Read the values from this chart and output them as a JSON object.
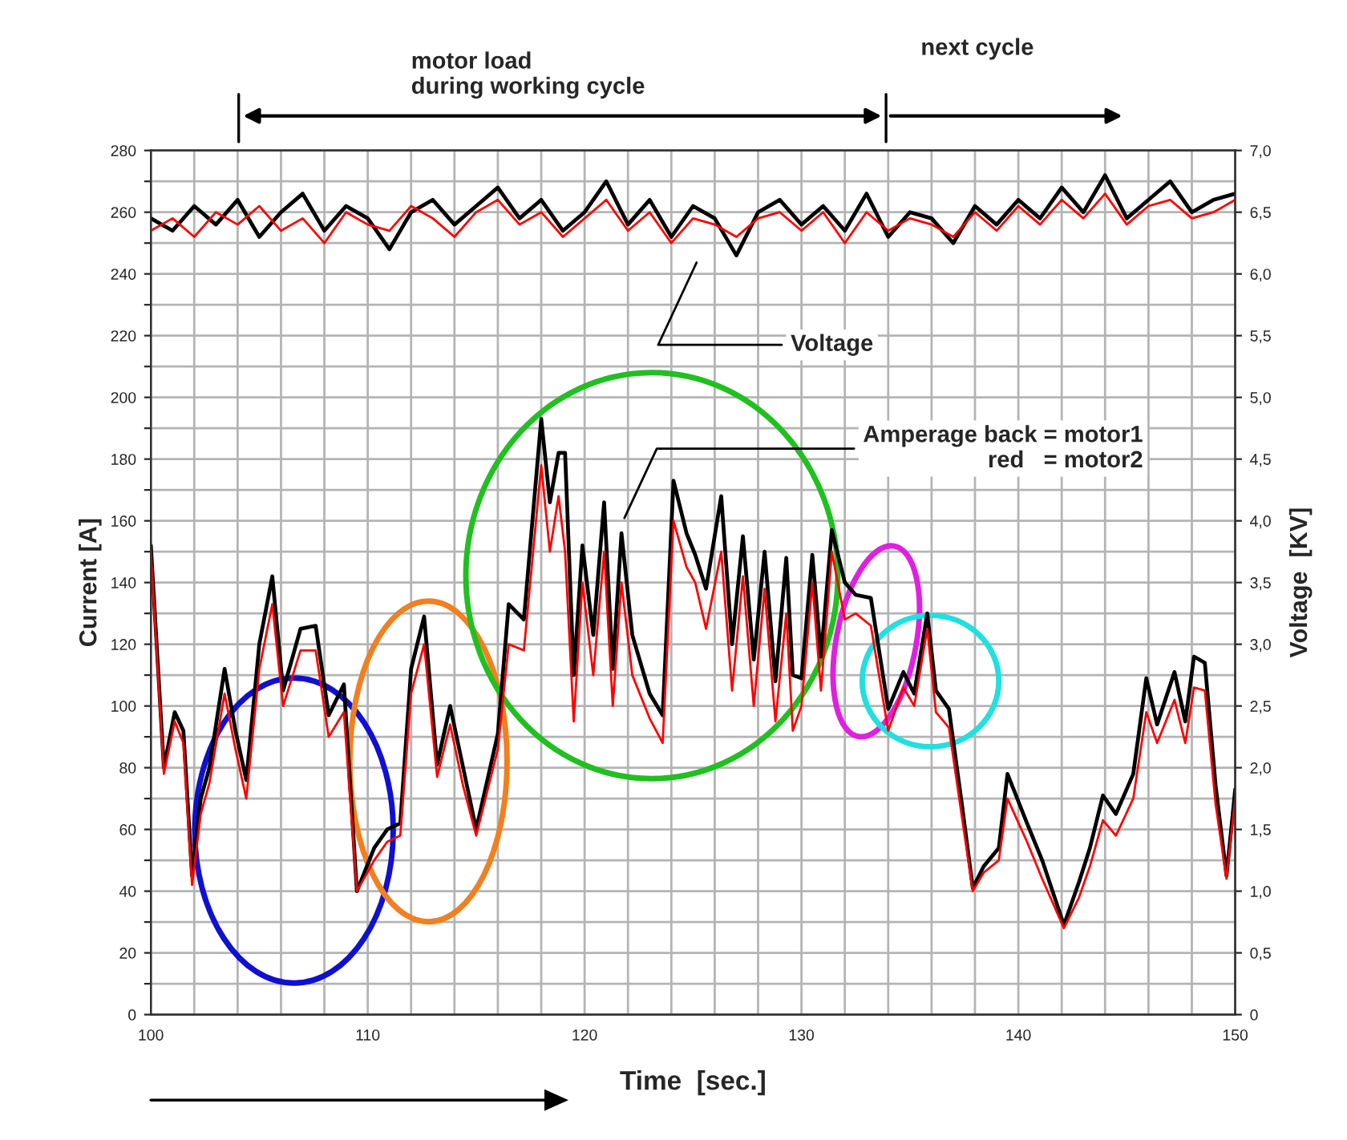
{
  "chart_data": {
    "type": "line",
    "xlabel": "Time  [sec.]",
    "ylabel": "Current [A]",
    "y2label": "Voltage  [KV]",
    "xlim": [
      100,
      150
    ],
    "xticks": [
      100,
      {
        "value": 102,
        "label": null
      },
      {
        "value": 104,
        "label": null
      },
      {
        "value": 106,
        "label": null
      },
      {
        "value": 108,
        "label": null
      },
      110,
      {
        "value": 112,
        "label": null
      },
      {
        "value": 114,
        "label": null
      },
      {
        "value": 116,
        "label": null
      },
      {
        "value": 118,
        "label": null
      },
      120,
      {
        "value": 122,
        "label": null
      },
      {
        "value": 124,
        "label": null
      },
      {
        "value": 126,
        "label": null
      },
      {
        "value": 128,
        "label": null
      },
      130,
      {
        "value": 132,
        "label": null
      },
      {
        "value": 134,
        "label": null
      },
      {
        "value": 136,
        "label": null
      },
      {
        "value": 138,
        "label": null
      },
      140,
      {
        "value": 142,
        "label": null
      },
      {
        "value": 144,
        "label": null
      },
      {
        "value": 146,
        "label": null
      },
      {
        "value": 148,
        "label": null
      },
      150
    ],
    "ylim": [
      0,
      280
    ],
    "yticks": [
      0,
      {
        "value": 10,
        "label": null
      },
      20,
      {
        "value": 30,
        "label": null
      },
      40,
      {
        "value": 50,
        "label": null
      },
      60,
      {
        "value": 70,
        "label": null
      },
      80,
      {
        "value": 90,
        "label": null
      },
      100,
      {
        "value": 110,
        "label": null
      },
      120,
      {
        "value": 130,
        "label": null
      },
      140,
      {
        "value": 150,
        "label": null
      },
      160,
      {
        "value": 170,
        "label": null
      },
      180,
      {
        "value": 190,
        "label": null
      },
      200,
      {
        "value": 210,
        "label": null
      },
      220,
      {
        "value": 230,
        "label": null
      },
      240,
      {
        "value": 250,
        "label": null
      },
      260,
      {
        "value": 270,
        "label": null
      },
      280
    ],
    "y2lim": [
      0,
      7
    ],
    "y2ticks": [
      0,
      {
        "value": 0.5,
        "label": "0,5"
      },
      {
        "value": 1,
        "label": "1,0"
      },
      {
        "value": 1.5,
        "label": "1,5"
      },
      {
        "value": 2,
        "label": "2,0"
      },
      {
        "value": 2.5,
        "label": "2,5"
      },
      {
        "value": 3,
        "label": "3,0"
      },
      {
        "value": 3.5,
        "label": "3,5"
      },
      {
        "value": 4,
        "label": "4,0"
      },
      {
        "value": 4.5,
        "label": "4,5"
      },
      {
        "value": 5,
        "label": "5,0"
      },
      {
        "value": 5.5,
        "label": "5,5"
      },
      {
        "value": 6,
        "label": "6,0"
      },
      {
        "value": 6.5,
        "label": "6,5"
      },
      {
        "value": 7,
        "label": "7,0"
      }
    ],
    "grid": true,
    "series": [
      {
        "color": "#000000",
        "axis": "y2",
        "x": [
          100,
          101,
          102,
          103,
          104,
          105,
          106,
          107,
          108,
          109,
          110,
          111,
          112,
          113,
          114,
          115,
          116,
          117,
          118,
          119,
          120,
          121,
          122,
          123,
          124,
          125,
          126,
          127,
          128,
          129,
          130,
          131,
          132,
          133,
          134,
          135,
          136,
          137,
          138,
          139,
          140,
          141,
          142,
          143,
          144,
          145,
          146,
          147,
          148,
          149,
          150
        ],
        "values": [
          6.45,
          6.35,
          6.55,
          6.4,
          6.6,
          6.3,
          6.5,
          6.65,
          6.35,
          6.55,
          6.45,
          6.2,
          6.5,
          6.6,
          6.4,
          6.55,
          6.7,
          6.45,
          6.6,
          6.35,
          6.5,
          6.75,
          6.4,
          6.6,
          6.3,
          6.55,
          6.45,
          6.15,
          6.5,
          6.6,
          6.4,
          6.55,
          6.35,
          6.65,
          6.3,
          6.5,
          6.45,
          6.25,
          6.55,
          6.4,
          6.6,
          6.45,
          6.7,
          6.5,
          6.8,
          6.45,
          6.6,
          6.75,
          6.5,
          6.6,
          6.65
        ]
      },
      {
        "color": "#ff0000",
        "axis": "y2",
        "x": [
          100,
          101,
          102,
          103,
          104,
          105,
          106,
          107,
          108,
          109,
          110,
          111,
          112,
          113,
          114,
          115,
          116,
          117,
          118,
          119,
          120,
          121,
          122,
          123,
          124,
          125,
          126,
          127,
          128,
          129,
          130,
          131,
          132,
          133,
          134,
          135,
          136,
          137,
          138,
          139,
          140,
          141,
          142,
          143,
          144,
          145,
          146,
          147,
          148,
          149,
          150
        ],
        "values": [
          6.35,
          6.45,
          6.3,
          6.5,
          6.4,
          6.55,
          6.35,
          6.45,
          6.25,
          6.5,
          6.4,
          6.35,
          6.55,
          6.45,
          6.3,
          6.5,
          6.6,
          6.4,
          6.5,
          6.3,
          6.45,
          6.6,
          6.35,
          6.5,
          6.25,
          6.45,
          6.4,
          6.3,
          6.45,
          6.5,
          6.35,
          6.5,
          6.25,
          6.5,
          6.35,
          6.45,
          6.4,
          6.3,
          6.5,
          6.35,
          6.55,
          6.4,
          6.6,
          6.45,
          6.65,
          6.4,
          6.55,
          6.6,
          6.45,
          6.5,
          6.6
        ]
      },
      {
        "color": "#000000",
        "x": [
          100,
          100.6,
          101.1,
          101.5,
          101.9,
          102.3,
          102.7,
          103.4,
          103.9,
          104.4,
          105.0,
          105.6,
          106.1,
          106.9,
          107.6,
          108.2,
          108.9,
          109.5,
          110.3,
          110.9,
          111.5,
          112,
          112.6,
          113.2,
          113.8,
          114.4,
          115,
          116,
          116.5,
          117.2,
          118,
          118.4,
          118.8,
          119.1,
          119.5,
          119.9,
          120.4,
          120.9,
          121.3,
          121.7,
          122.2,
          123,
          123.6,
          124.1,
          124.7,
          125.1,
          125.6,
          126.3,
          126.8,
          127.3,
          127.8,
          128.3,
          128.8,
          129.3,
          129.6,
          130,
          130.5,
          130.9,
          131.4,
          132,
          132.5,
          133.2,
          134,
          134.7,
          135.2,
          135.8,
          136.2,
          136.8,
          137.4,
          137.9,
          138.4,
          139.1,
          139.5,
          140.4,
          141.1,
          142.1,
          142.8,
          143.3,
          143.9,
          144.5,
          145.3,
          145.9,
          146.4,
          147.2,
          147.7,
          148.1,
          148.6,
          149.1,
          149.6,
          150
        ],
        "values": [
          152,
          80,
          98,
          92,
          45,
          70,
          80,
          112,
          92,
          76,
          120,
          142,
          105,
          125,
          126,
          97,
          107,
          40,
          54,
          60,
          62,
          112,
          129,
          81,
          100,
          80,
          60,
          91,
          133,
          128,
          193,
          166,
          182,
          182,
          110,
          152,
          123,
          166,
          112,
          156,
          123,
          104,
          97,
          173,
          156,
          149,
          138,
          168,
          120,
          155,
          115,
          150,
          108,
          148,
          110,
          109,
          149,
          116,
          157,
          140,
          136,
          135,
          99,
          111,
          104,
          130,
          105,
          99,
          68,
          41,
          48,
          54,
          78,
          62,
          50,
          29,
          43,
          54,
          71,
          65,
          78,
          109,
          94,
          111,
          95,
          116,
          114,
          74,
          45,
          73
        ]
      },
      {
        "color": "#ff0000",
        "x": [
          100,
          100.6,
          101.1,
          101.5,
          101.9,
          102.3,
          102.7,
          103.4,
          103.9,
          104.4,
          105.0,
          105.6,
          106.1,
          106.9,
          107.6,
          108.2,
          108.9,
          109.5,
          110.3,
          110.9,
          111.5,
          112,
          112.6,
          113.2,
          113.8,
          114.4,
          115,
          116,
          116.5,
          117.2,
          118,
          118.4,
          118.8,
          119.1,
          119.5,
          119.9,
          120.4,
          120.9,
          121.3,
          121.7,
          122.2,
          123,
          123.6,
          124.1,
          124.7,
          125.1,
          125.6,
          126.3,
          126.8,
          127.3,
          127.8,
          128.3,
          128.8,
          129.3,
          129.6,
          130,
          130.5,
          130.9,
          131.4,
          132,
          132.5,
          133.2,
          134,
          134.7,
          135.2,
          135.8,
          136.2,
          136.8,
          137.4,
          137.9,
          138.4,
          139.1,
          139.5,
          140.4,
          141.1,
          142.1,
          142.8,
          143.3,
          143.9,
          144.5,
          145.3,
          145.9,
          146.4,
          147.2,
          147.7,
          148.1,
          148.6,
          149.1,
          149.6,
          150
        ],
        "values": [
          150,
          78,
          95,
          88,
          42,
          65,
          75,
          104,
          86,
          70,
          112,
          133,
          100,
          118,
          118,
          90,
          98,
          40,
          50,
          56,
          58,
          104,
          120,
          77,
          94,
          74,
          58,
          86,
          120,
          118,
          178,
          150,
          168,
          150,
          95,
          140,
          110,
          150,
          100,
          140,
          110,
          96,
          88,
          160,
          145,
          140,
          125,
          150,
          105,
          142,
          100,
          138,
          95,
          130,
          92,
          100,
          140,
          105,
          150,
          128,
          130,
          126,
          92,
          106,
          100,
          125,
          98,
          93,
          64,
          40,
          46,
          50,
          70,
          56,
          44,
          28,
          38,
          48,
          63,
          58,
          70,
          98,
          88,
          102,
          88,
          106,
          105,
          68,
          44,
          70
        ]
      }
    ],
    "annotations": [
      "motor load\nduring working cycle",
      "next cycle",
      "Voltage",
      "Amperage back = motor1\nred   = motor2"
    ]
  }
}
